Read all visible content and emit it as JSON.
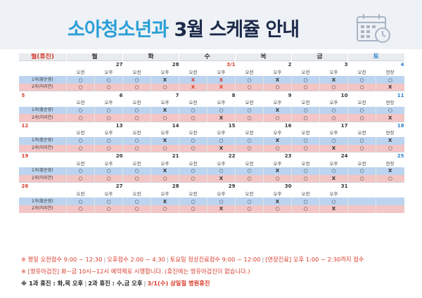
{
  "title": {
    "part1": "소아청소년과",
    "part2": "3월 스케쥴 안내"
  },
  "header": {
    "first_col": "월(휴진)",
    "days": [
      "월",
      "화",
      "수",
      "목",
      "금",
      "토"
    ]
  },
  "weeks": [
    {
      "first": "",
      "dates": [
        "27",
        "28",
        "3/1",
        "2",
        "3",
        "4"
      ],
      "date_colors": [
        "",
        "",
        "red",
        "",
        "",
        "blue"
      ],
      "doc1_label": "1과(황순영)",
      "doc2_label": "2과(허지연)",
      "doc1": [
        "○",
        "○",
        "○",
        "X",
        "X",
        "X",
        "○",
        "X",
        "○",
        "X",
        "○",
        "○"
      ],
      "doc2": [
        "○",
        "○",
        "○",
        "○",
        "X",
        "X",
        "○",
        "○",
        "○",
        "○",
        "○",
        "X"
      ],
      "doc1_red": [
        false,
        false,
        false,
        false,
        true,
        true,
        false,
        false,
        false,
        false,
        false,
        false
      ],
      "doc2_red": [
        false,
        false,
        false,
        false,
        true,
        true,
        false,
        false,
        false,
        false,
        false,
        false
      ]
    },
    {
      "first": "5",
      "dates": [
        "6",
        "7",
        "8",
        "9",
        "10",
        "11"
      ],
      "date_colors": [
        "",
        "",
        "",
        "",
        "",
        "blue"
      ],
      "doc1_label": "1과(황순영)",
      "doc2_label": "2과(허지연)",
      "doc1": [
        "○",
        "○",
        "○",
        "X",
        "○",
        "○",
        "○",
        "X",
        "○",
        "○",
        "○",
        "○"
      ],
      "doc2": [
        "○",
        "○",
        "○",
        "○",
        "○",
        "X",
        "○",
        "○",
        "○",
        "○",
        "○",
        "X"
      ],
      "doc1_red": [
        false,
        false,
        false,
        false,
        false,
        false,
        false,
        false,
        false,
        false,
        false,
        false
      ],
      "doc2_red": [
        false,
        false,
        false,
        false,
        false,
        false,
        false,
        false,
        false,
        false,
        false,
        false
      ]
    },
    {
      "first": "12",
      "dates": [
        "13",
        "14",
        "15",
        "16",
        "17",
        "18"
      ],
      "date_colors": [
        "",
        "",
        "",
        "",
        "",
        "blue"
      ],
      "doc1_label": "1과(황순영)",
      "doc2_label": "2과(허지연)",
      "doc1": [
        "○",
        "○",
        "○",
        "X",
        "○",
        "○",
        "○",
        "X",
        "○",
        "○",
        "○",
        "X"
      ],
      "doc2": [
        "○",
        "○",
        "○",
        "○",
        "○",
        "X",
        "○",
        "○",
        "○",
        "X",
        "○",
        "○"
      ],
      "doc1_red": [
        false,
        false,
        false,
        false,
        false,
        false,
        false,
        false,
        false,
        false,
        false,
        false
      ],
      "doc2_red": [
        false,
        false,
        false,
        false,
        false,
        false,
        false,
        false,
        false,
        false,
        false,
        false
      ]
    },
    {
      "first": "19",
      "dates": [
        "20",
        "21",
        "22",
        "23",
        "24",
        "25"
      ],
      "date_colors": [
        "",
        "",
        "",
        "",
        "",
        "blue"
      ],
      "doc1_label": "1과(황순영)",
      "doc2_label": "2과(허지연)",
      "doc1": [
        "○",
        "○",
        "○",
        "X",
        "○",
        "○",
        "○",
        "X",
        "○",
        "○",
        "○",
        "X"
      ],
      "doc2": [
        "○",
        "○",
        "○",
        "○",
        "○",
        "X",
        "○",
        "○",
        "○",
        "X",
        "○",
        "○"
      ],
      "doc1_red": [
        false,
        false,
        false,
        false,
        false,
        false,
        false,
        false,
        false,
        false,
        false,
        false
      ],
      "doc2_red": [
        false,
        false,
        false,
        false,
        false,
        false,
        false,
        false,
        false,
        false,
        false,
        false
      ]
    },
    {
      "first": "26",
      "dates": [
        "27",
        "28",
        "29",
        "30",
        "31",
        ""
      ],
      "date_colors": [
        "",
        "",
        "",
        "",
        "",
        ""
      ],
      "doc1_label": "1과(황순영)",
      "doc2_label": "2과(허지연)",
      "doc1": [
        "○",
        "○",
        "○",
        "X",
        "○",
        "○",
        "○",
        "X",
        "○",
        "○",
        "",
        ""
      ],
      "doc2": [
        "○",
        "○",
        "○",
        "○",
        "○",
        "X",
        "○",
        "○",
        "○",
        "X",
        "",
        ""
      ],
      "doc1_red": [
        false,
        false,
        false,
        false,
        false,
        false,
        false,
        false,
        false,
        false,
        false,
        false
      ],
      "doc2_red": [
        false,
        false,
        false,
        false,
        false,
        false,
        false,
        false,
        false,
        false,
        false,
        false
      ]
    }
  ],
  "slots_weekday": [
    "오전",
    "오후"
  ],
  "slots_saturday": [
    "오전",
    "연장"
  ],
  "notes": {
    "line1_a": "※ 평일 오전접수 9:00 ~ 12:30",
    "line1_b": "오후접수 2:00 ~ 4:30",
    "line1_c": "토요일 정상진료접수 9:00 ~ 12:00",
    "line1_d": "[연장진료] 오후 1:00 ~ 2:30까지 접수",
    "line2": "※ [영유아검진] 화~금 10시~12시 예약제로 시행합니다. (휴진에는 영유아검진이 없습니다.)",
    "line3_a": "※ 1과 휴진 : 화,목 오후",
    "line3_b": "2과 휴진 : 수,금 오후",
    "line3_c": "3/1(수) 삼일절 병원휴진"
  },
  "colors": {
    "title_blue": "#2a9fd6",
    "title_navy": "#1c2a4a",
    "doc1_row": "#bcd4ef",
    "doc2_row": "#f3c5c5",
    "red": "#d83b2b",
    "saturday_blue": "#2a7fc9"
  },
  "icons": [
    "calendar-clock-icon"
  ]
}
